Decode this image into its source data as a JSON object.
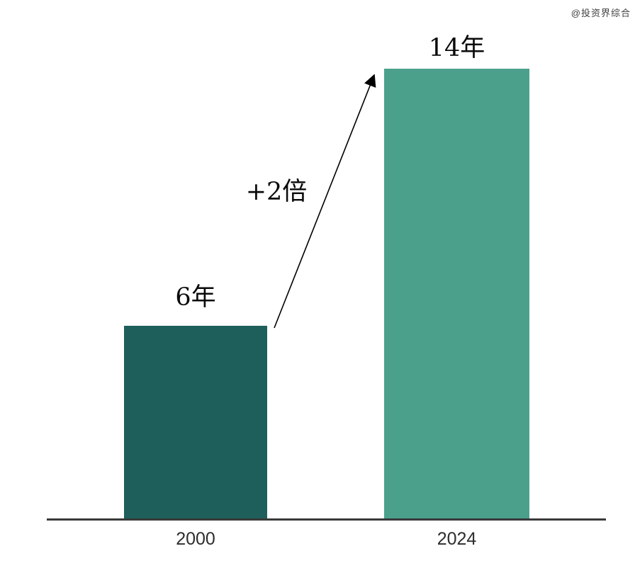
{
  "watermark": "@投资界综合",
  "chart_data": {
    "type": "bar",
    "title": "",
    "xlabel": "",
    "ylabel": "",
    "categories": [
      "2000",
      "2024"
    ],
    "values": [
      6,
      14
    ],
    "value_labels": [
      "6年",
      "14年"
    ],
    "unit": "年",
    "bar_colors": [
      "#1E5F5B",
      "#4BA08C"
    ],
    "annotation": "+2倍",
    "ylim": [
      0,
      14
    ],
    "grid": false,
    "legend": false,
    "axis_color": "#3a3a3a",
    "label_color": "#0a0a0a"
  }
}
